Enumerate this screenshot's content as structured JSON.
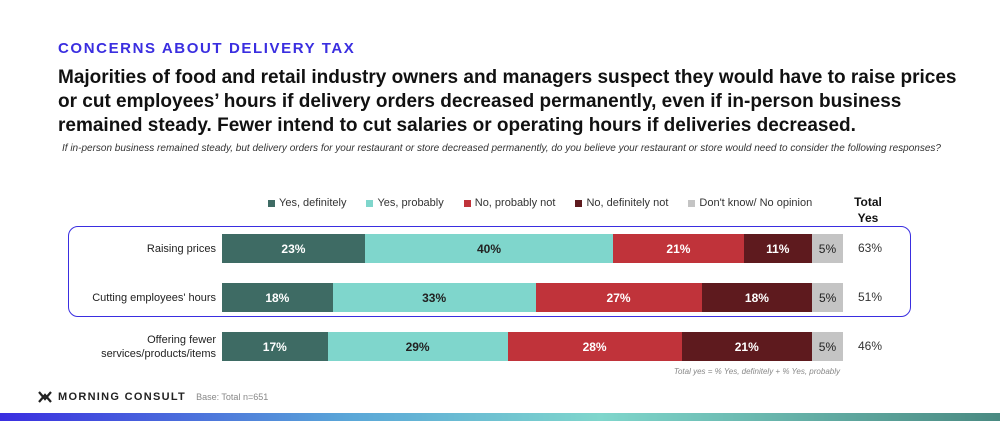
{
  "kicker": "CONCERNS ABOUT DELIVERY TAX",
  "headline": "Majorities of food and retail industry owners and managers suspect they would have to raise prices or cut employees’ hours if delivery orders decreased permanently, even if in-person business remained steady. Fewer intend to cut salaries or operating hours if deliveries decreased.",
  "question": "If in-person business remained steady, but delivery orders for your restaurant or store decreased permanently, do you believe your restaurant or store would need to consider the following responses?",
  "total_header": "Total Yes",
  "note": "Total yes = % Yes, definitely + % Yes, probably",
  "brand": "MORNING CONSULT",
  "base": "Base: Total n=651",
  "chart_data": {
    "type": "bar",
    "orientation": "horizontal",
    "stacked": true,
    "categories": [
      "Raising prices",
      "Cutting employees' hours",
      "Offering fewer services/products/items"
    ],
    "series": [
      {
        "name": "Yes, definitely",
        "color": "#3e6b64",
        "text_color": "#ffffff",
        "values": [
          23,
          18,
          17
        ]
      },
      {
        "name": "Yes, probably",
        "color": "#7fd6cc",
        "text_color": "#222222",
        "values": [
          40,
          33,
          29
        ]
      },
      {
        "name": "No, probably not",
        "color": "#c0333a",
        "text_color": "#ffffff",
        "values": [
          21,
          27,
          28
        ]
      },
      {
        "name": "No, definitely not",
        "color": "#5e1a1e",
        "text_color": "#ffffff",
        "values": [
          11,
          18,
          21
        ]
      },
      {
        "name": "Don't know/ No opinion",
        "color": "#c4c4c4",
        "text_color": "#222222",
        "values": [
          5,
          5,
          5
        ]
      }
    ],
    "total_yes": [
      "63%",
      "51%",
      "46%"
    ],
    "highlighted_categories": [
      "Raising prices",
      "Cutting employees' hours"
    ],
    "highlight_color": "#3a2ee0",
    "legend": "top"
  }
}
